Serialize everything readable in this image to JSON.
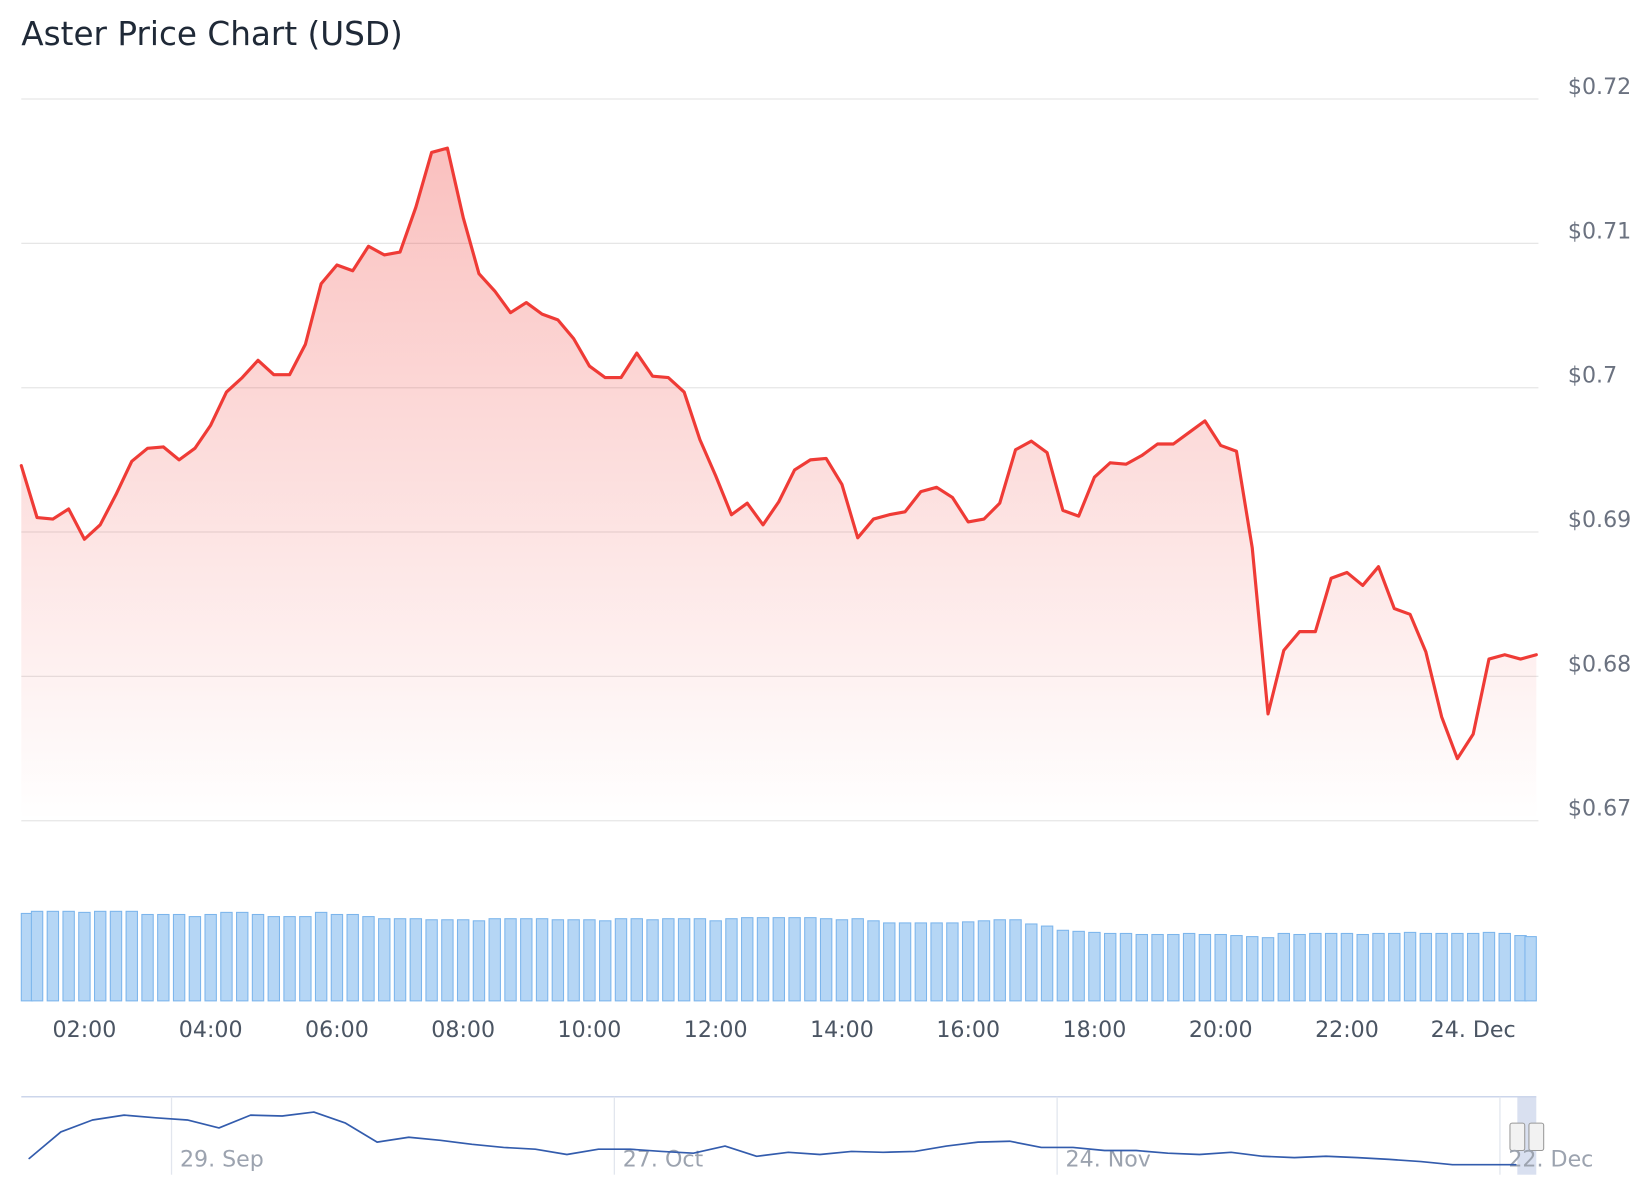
{
  "chart_data": [
    {
      "type": "line",
      "title": "Aster Price Chart (USD)",
      "x": [
        1,
        1.25,
        1.5,
        1.75,
        2,
        2.25,
        2.5,
        2.75,
        3,
        3.25,
        3.5,
        3.75,
        4,
        4.25,
        4.5,
        4.75,
        5,
        5.25,
        5.5,
        5.75,
        6,
        6.25,
        6.5,
        6.75,
        7,
        7.25,
        7.5,
        7.75,
        8,
        8.25,
        8.5,
        8.75,
        9,
        9.25,
        9.5,
        9.75,
        10,
        10.25,
        10.5,
        10.75,
        11,
        11.25,
        11.5,
        11.75,
        12,
        12.25,
        12.5,
        12.75,
        13,
        13.25,
        13.5,
        13.75,
        14,
        14.25,
        14.5,
        14.75,
        15,
        15.25,
        15.5,
        15.75,
        16,
        16.25,
        16.5,
        16.75,
        17,
        17.25,
        17.5,
        17.75,
        18,
        18.25,
        18.5,
        18.75,
        19,
        19.25,
        19.5,
        19.75,
        20,
        20.25,
        20.5,
        20.75,
        21,
        21.25,
        21.5,
        21.75,
        22,
        22.25,
        22.5,
        22.75,
        23,
        23.25,
        23.5,
        23.75,
        24,
        24.25,
        24.5,
        24.75,
        25
      ],
      "series": [
        {
          "color": "#ef3b36",
          "values": [
            0.6946,
            0.691,
            0.6909,
            0.6916,
            0.6895,
            0.6905,
            0.6926,
            0.6949,
            0.6958,
            0.6959,
            0.695,
            0.6958,
            0.6974,
            0.6997,
            0.7007,
            0.7019,
            0.7009,
            0.7009,
            0.703,
            0.7072,
            0.7085,
            0.7081,
            0.7098,
            0.7092,
            0.7094,
            0.7125,
            0.7163,
            0.7166,
            0.7118,
            0.7079,
            0.7067,
            0.7052,
            0.7059,
            0.7051,
            0.7047,
            0.7034,
            0.7015,
            0.7007,
            0.7007,
            0.7024,
            0.7008,
            0.7007,
            0.6997,
            0.6964,
            0.6939,
            0.6912,
            0.692,
            0.6905,
            0.6921,
            0.6943,
            0.695,
            0.6951,
            0.6933,
            0.6896,
            0.6909,
            0.6912,
            0.6914,
            0.6928,
            0.6931,
            0.6924,
            0.6907,
            0.6909,
            0.692,
            0.6957,
            0.6963,
            0.6955,
            0.6915,
            0.6911,
            0.6938,
            0.6948,
            0.6947,
            0.6953,
            0.6961,
            0.6961,
            0.6969,
            0.6977,
            0.696,
            0.6956,
            0.6889,
            0.6774,
            0.6818,
            0.6831,
            0.6831,
            0.6868,
            0.6872,
            0.6863,
            0.6876,
            0.6847,
            0.6843,
            0.6817,
            0.6772,
            0.6743,
            0.676,
            0.6812,
            0.6815,
            0.6812,
            0.6815
          ]
        },
        {
          "type": "bar",
          "axis": "y2",
          "color": "#7cb5ec",
          "values": [
            83,
            85,
            85,
            85,
            84,
            85,
            85,
            85,
            82,
            82,
            82,
            80,
            82,
            84,
            84,
            82,
            80,
            80,
            80,
            84,
            82,
            82,
            80,
            78,
            78,
            78,
            77,
            77,
            77,
            76,
            78,
            78,
            78,
            78,
            77,
            77,
            77,
            76,
            78,
            78,
            77,
            78,
            78,
            78,
            76,
            78,
            79,
            79,
            79,
            79,
            79,
            78,
            77,
            78,
            76,
            74,
            74,
            74,
            74,
            74,
            75,
            76,
            77,
            77,
            73,
            71,
            67,
            66,
            65,
            64,
            64,
            63,
            63,
            63,
            64,
            63,
            63,
            62,
            61,
            60,
            64,
            63,
            64,
            64,
            64,
            63,
            64,
            64,
            65,
            64,
            64,
            64,
            64,
            65,
            64,
            62,
            61
          ]
        }
      ],
      "xlim": [
        1,
        25
      ],
      "xticks": [
        {
          "value": 2,
          "label": "02:00"
        },
        {
          "value": 4,
          "label": "04:00"
        },
        {
          "value": 6,
          "label": "06:00"
        },
        {
          "value": 8,
          "label": "08:00"
        },
        {
          "value": 10,
          "label": "10:00"
        },
        {
          "value": 12,
          "label": "12:00"
        },
        {
          "value": 14,
          "label": "14:00"
        },
        {
          "value": 16,
          "label": "16:00"
        },
        {
          "value": 18,
          "label": "18:00"
        },
        {
          "value": 20,
          "label": "20:00"
        },
        {
          "value": 22,
          "label": "22:00"
        },
        {
          "value": 24,
          "label": "24. Dec"
        }
      ],
      "ylim": [
        0.67,
        0.72
      ],
      "yticks": [
        {
          "value": 0.67,
          "label": "$0.67"
        },
        {
          "value": 0.68,
          "label": "$0.68"
        },
        {
          "value": 0.69,
          "label": "$0.69"
        },
        {
          "value": 0.7,
          "label": "$0.7"
        },
        {
          "value": 0.71,
          "label": "$0.71"
        },
        {
          "value": 0.72,
          "label": "$0.72"
        }
      ],
      "y2lim": [
        0,
        100
      ],
      "grid": true
    },
    {
      "type": "line",
      "x": [
        -9,
        -7,
        -5,
        -3,
        -1,
        1,
        3,
        5,
        7,
        9,
        11,
        13,
        15,
        17,
        19,
        21,
        23,
        25,
        27,
        29,
        31,
        33,
        35,
        37,
        39,
        41,
        43,
        45,
        47,
        49,
        51,
        53,
        55,
        57,
        59,
        61,
        63,
        65,
        67,
        69,
        71,
        73,
        75,
        77,
        79,
        81,
        83,
        85
      ],
      "series": [
        {
          "color": "#335cad",
          "values": [
            0.75,
            1.35,
            1.62,
            1.73,
            1.67,
            1.62,
            1.44,
            1.73,
            1.71,
            1.8,
            1.55,
            1.12,
            1.23,
            1.16,
            1.07,
            1.0,
            0.96,
            0.84,
            0.96,
            0.96,
            0.91,
            0.87,
            1.03,
            0.8,
            0.89,
            0.84,
            0.91,
            0.89,
            0.91,
            1.03,
            1.12,
            1.14,
            1.0,
            1.0,
            0.93,
            0.93,
            0.87,
            0.84,
            0.89,
            0.8,
            0.77,
            0.8,
            0.77,
            0.73,
            0.68,
            0.61,
            0.61,
            0.61
          ]
        }
      ],
      "xlim": [
        -9.5,
        86.3
      ],
      "xticks": [
        {
          "value": 0,
          "label": "29. Sep"
        },
        {
          "value": 28,
          "label": "27. Oct"
        },
        {
          "value": 56,
          "label": "24. Nov"
        },
        {
          "value": 84,
          "label": "22. Dec"
        }
      ],
      "ylim": [
        0.55,
        2.05
      ]
    }
  ]
}
